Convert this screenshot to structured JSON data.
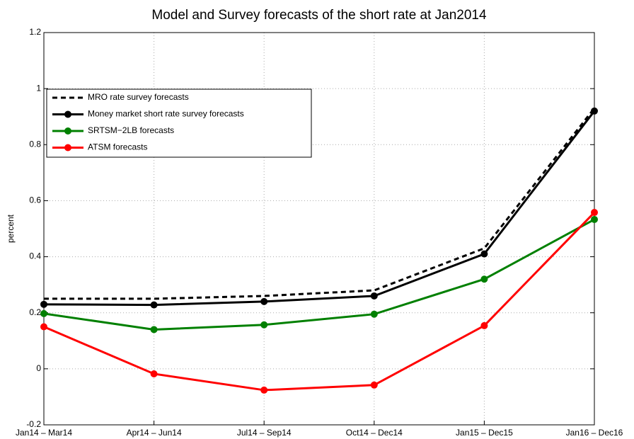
{
  "chart_data": {
    "type": "line",
    "title": "Model and Survey forecasts of the short rate at Jan2014",
    "y_label": "percent",
    "categories": [
      "Jan14 – Mar14",
      "Apr14 – Jun14",
      "Jul14 – Sep14",
      "Oct14 – Dec14",
      "Jan15 – Dec15",
      "Jan16 – Dec16"
    ],
    "series": [
      {
        "name": "MRO rate survey forecasts",
        "color": "#000000",
        "style": "dashed",
        "marker": false,
        "values": [
          0.25,
          0.25,
          0.26,
          0.28,
          0.43,
          0.93
        ]
      },
      {
        "name": "Money market short rate survey forecasts",
        "color": "#000000",
        "style": "solid",
        "marker": true,
        "values": [
          0.23,
          0.228,
          0.24,
          0.26,
          0.41,
          0.92
        ]
      },
      {
        "name": "SRTSM−2LB forecasts",
        "color": "#008000",
        "style": "solid",
        "marker": true,
        "values": [
          0.197,
          0.14,
          0.157,
          0.195,
          0.32,
          0.533
        ]
      },
      {
        "name": "ATSM forecasts",
        "color": "#ff0000",
        "style": "solid",
        "marker": true,
        "values": [
          0.15,
          -0.018,
          -0.076,
          -0.058,
          0.154,
          0.558
        ]
      }
    ],
    "ylim": [
      -0.2,
      1.2
    ],
    "yticks": [
      -0.2,
      0,
      0.2,
      0.4,
      0.6,
      0.8,
      1,
      1.2
    ],
    "grid": true,
    "legend": "upper left"
  }
}
